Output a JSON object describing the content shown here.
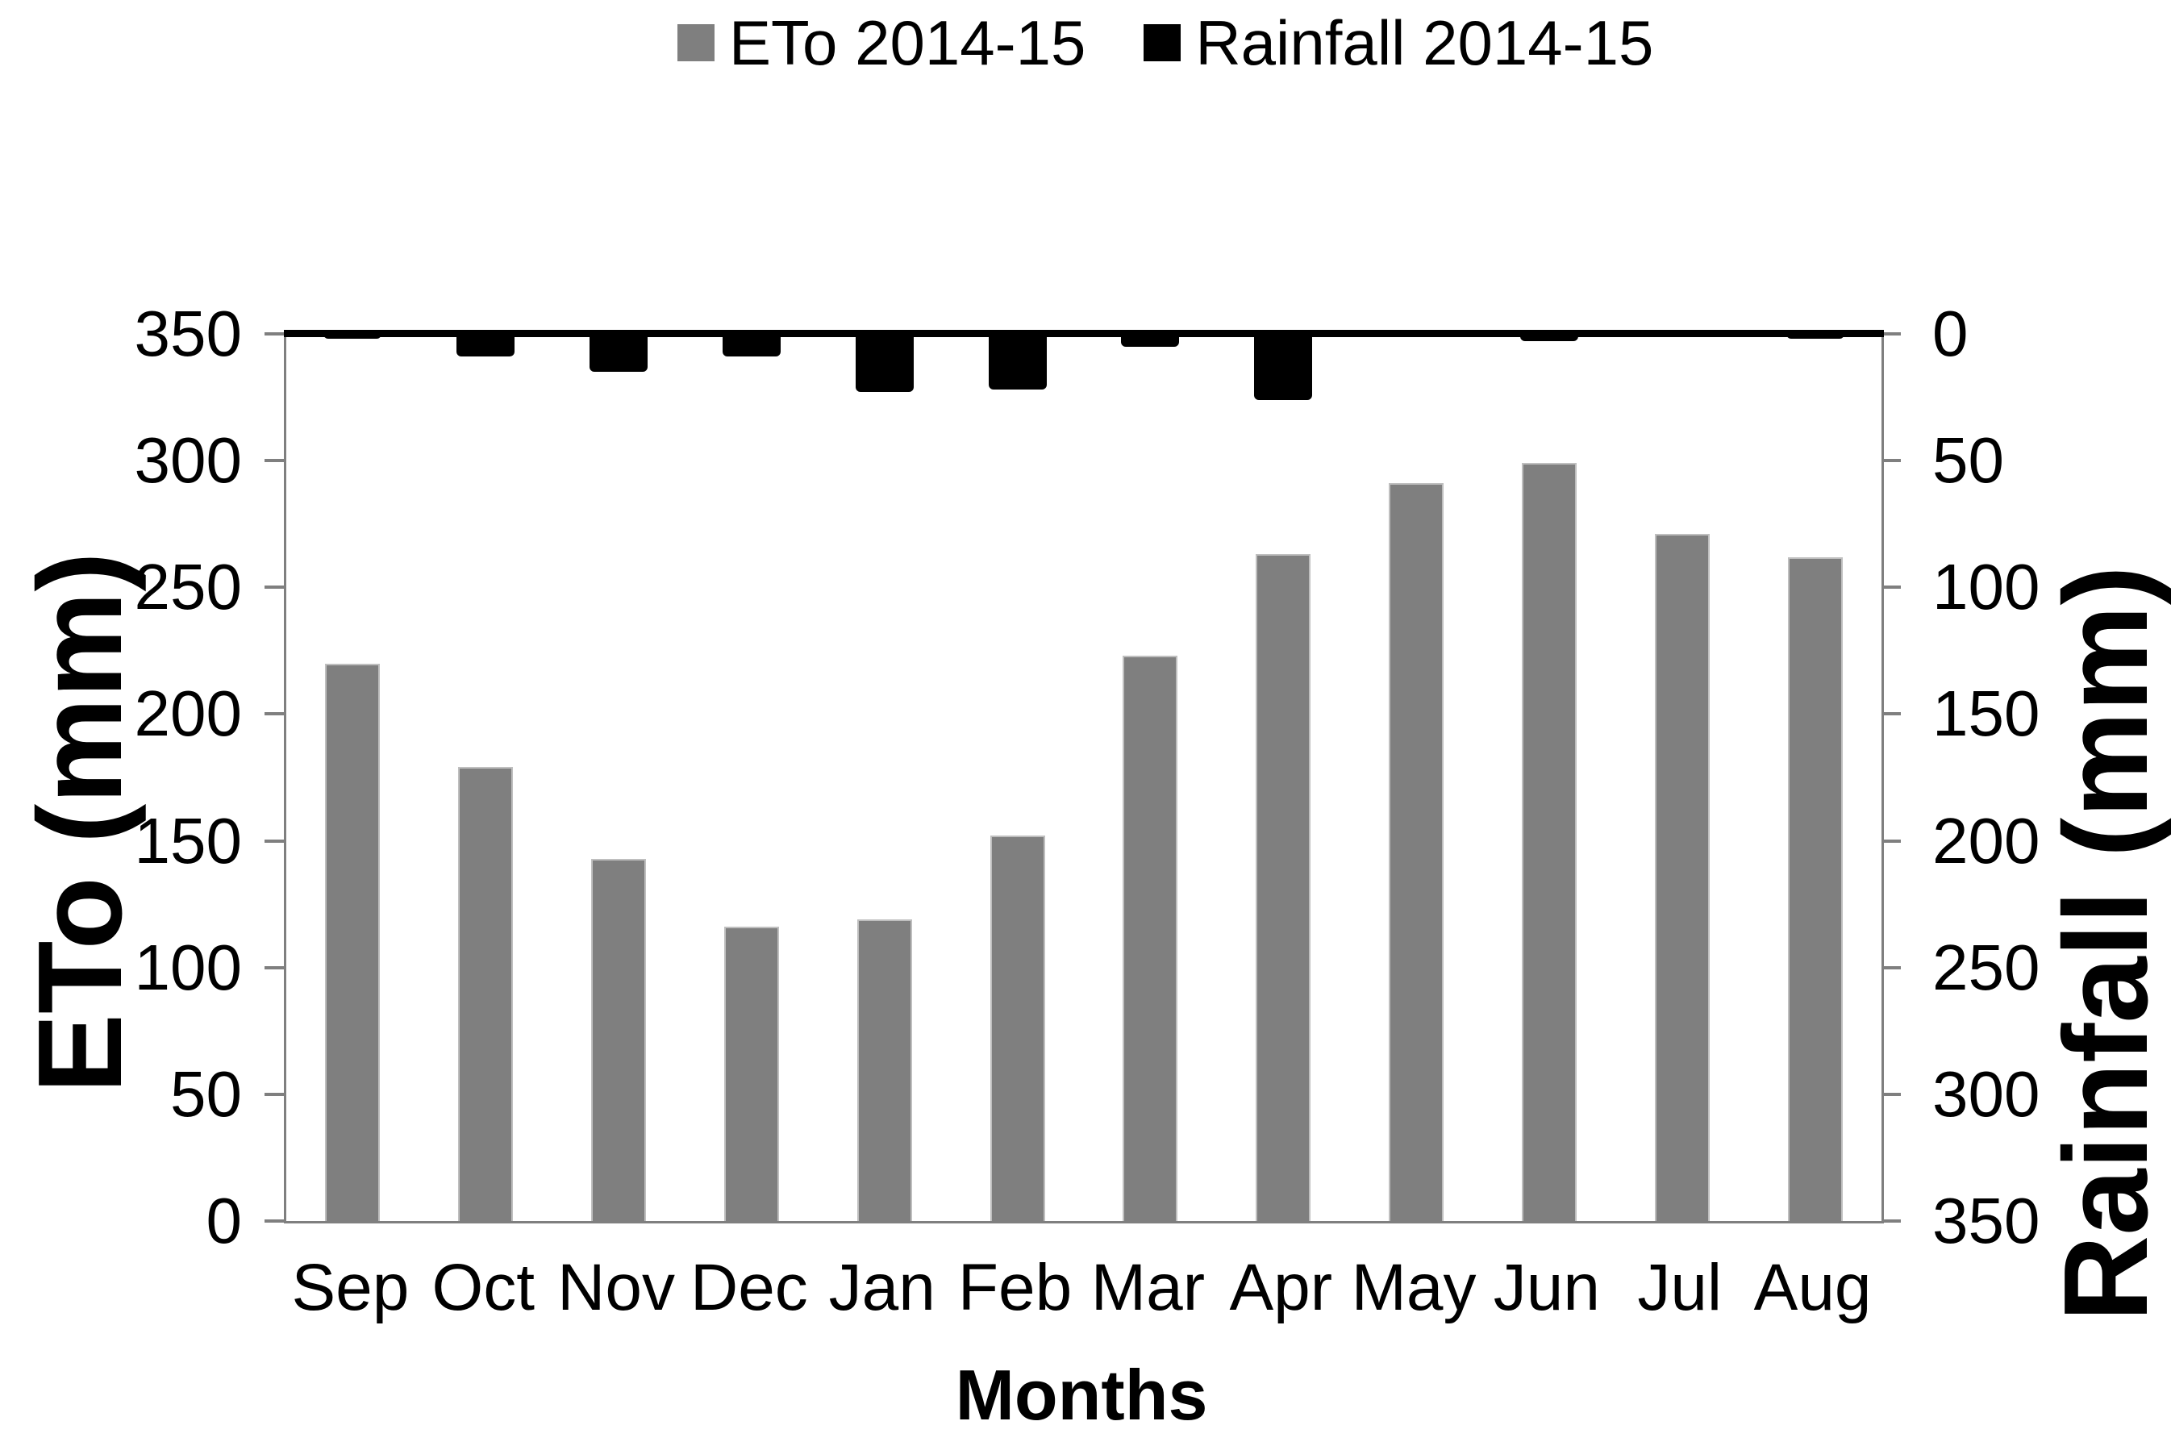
{
  "legend": {
    "items": [
      {
        "label": "ETo 2014-15",
        "color": "#7F7F7F"
      },
      {
        "label": "Rainfall 2014-15",
        "color": "#000000"
      }
    ]
  },
  "axes": {
    "left": {
      "title": "ETo (mm)",
      "tick_labels": [
        "350",
        "300",
        "250",
        "200",
        "150",
        "100",
        "50",
        "0"
      ]
    },
    "right": {
      "title": "Rainfall (mm)",
      "tick_labels": [
        "0",
        "50",
        "100",
        "150",
        "200",
        "250",
        "300",
        "350"
      ]
    },
    "x": {
      "title": "Months"
    }
  },
  "chart_data": {
    "type": "bar",
    "categories": [
      "Sep",
      "Oct",
      "Nov",
      "Dec",
      "Jan",
      "Feb",
      "Mar",
      "Apr",
      "May",
      "Jun",
      "Jul",
      "Aug"
    ],
    "series": [
      {
        "name": "ETo 2014-15",
        "axis": "left",
        "color": "#7F7F7F",
        "direction": "up",
        "values": [
          220,
          179,
          143,
          116,
          119,
          152,
          223,
          263,
          291,
          299,
          271,
          262
        ]
      },
      {
        "name": "Rainfall 2014-15",
        "axis": "right",
        "color": "#000000",
        "direction": "down",
        "values": [
          2,
          9,
          15,
          9,
          23,
          22,
          5,
          26,
          0,
          3,
          0,
          2
        ]
      }
    ],
    "title": "",
    "xlabel": "Months",
    "ylabel_left": "ETo (mm)",
    "ylabel_right": "Rainfall (mm)",
    "left_ylim": [
      0,
      350
    ],
    "right_ylim": [
      0,
      350
    ],
    "right_axis_inverted": true,
    "grid": false,
    "legend_position": "top-center"
  },
  "colors": {
    "eto_bar": "#7F7F7F",
    "eto_bar_border": "#BFBFBF",
    "rain_bar": "#000000",
    "frame": "#7F7F7F",
    "top_line": "#000000"
  }
}
